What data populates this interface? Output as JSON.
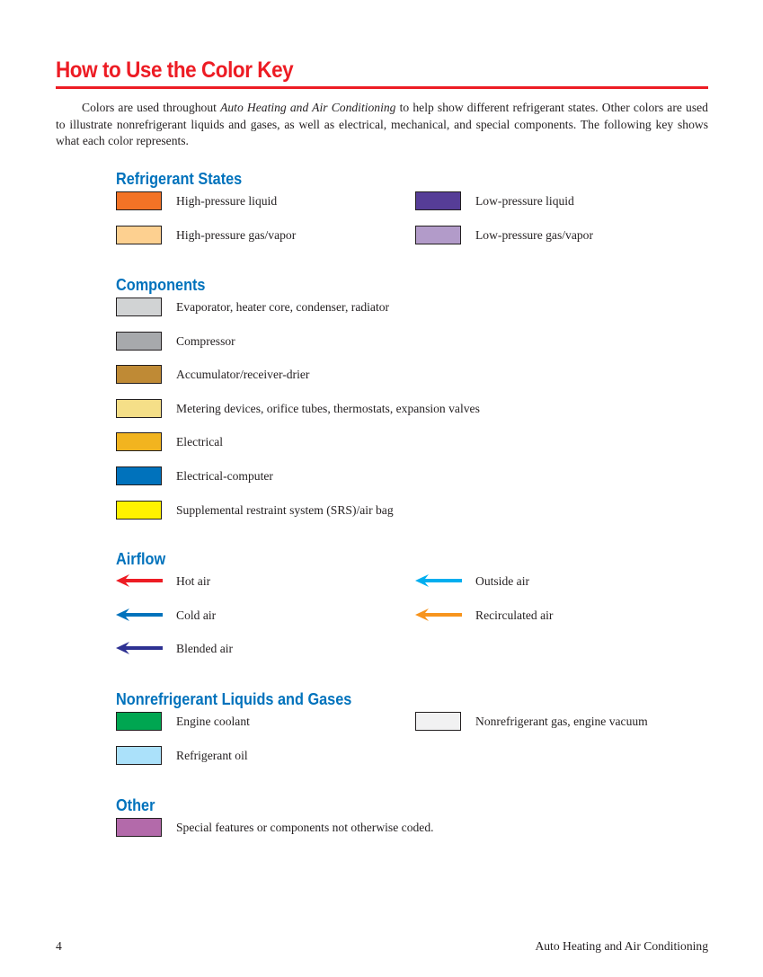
{
  "title": "How to Use the Color Key",
  "intro": {
    "before": "Colors are used throughout ",
    "book_title": "Auto Heating and Air Conditioning",
    "after": " to help show different refrigerant states. Other colors are used to illustrate nonrefrigerant liquids and gases, as well as electrical, mechanical, and special components. The following key shows what each color represents."
  },
  "refrigerant": {
    "heading": "Refrigerant States",
    "items": [
      {
        "label": "High-pressure liquid",
        "color": "#f37326"
      },
      {
        "label": "High-pressure gas/vapor",
        "color": "#fdd090"
      },
      {
        "label": "Low-pressure liquid",
        "color": "#563d97"
      },
      {
        "label": "Low-pressure gas/vapor",
        "color": "#b29bc9"
      }
    ]
  },
  "components": {
    "heading": "Components",
    "items": [
      {
        "label": "Evaporator, heater core, condenser, radiator",
        "color": "#d1d3d4"
      },
      {
        "label": "Compressor",
        "color": "#a7a9ac"
      },
      {
        "label": "Accumulator/receiver-drier",
        "color": "#bf8a35"
      },
      {
        "label": "Metering devices, orifice tubes, thermostats, expansion valves",
        "color": "#f5df88"
      },
      {
        "label": "Electrical",
        "color": "#f2b41f"
      },
      {
        "label": "Electrical-computer",
        "color": "#0072bc"
      },
      {
        "label": "Supplemental restraint system (SRS)/air bag",
        "color": "#fff200"
      }
    ]
  },
  "airflow": {
    "heading": "Airflow",
    "items": [
      {
        "label": "Hot air",
        "color": "#ed1c24",
        "icon": "arrow-left-icon"
      },
      {
        "label": "Cold air",
        "color": "#0072bc",
        "icon": "arrow-left-icon"
      },
      {
        "label": "Blended air",
        "color": "#2e3192",
        "icon": "arrow-left-icon"
      },
      {
        "label": "Outside air",
        "color": "#00aeef",
        "icon": "arrow-left-icon"
      },
      {
        "label": "Recirculated air",
        "color": "#f7941d",
        "icon": "arrow-left-icon"
      }
    ]
  },
  "nonrefrigerant": {
    "heading": "Nonrefrigerant Liquids and Gases",
    "items": [
      {
        "label": "Engine coolant",
        "color": "#00a651"
      },
      {
        "label": "Refrigerant oil",
        "color": "#abe1fa"
      },
      {
        "label": "Nonrefrigerant gas, engine vacuum",
        "color": "#f1f1f2"
      }
    ]
  },
  "other": {
    "heading": "Other",
    "items": [
      {
        "label": "Special features or components not otherwise coded.",
        "color": "#b36aaa"
      }
    ]
  },
  "footer": {
    "page_number": "4",
    "book_title": "Auto Heating and Air Conditioning"
  }
}
